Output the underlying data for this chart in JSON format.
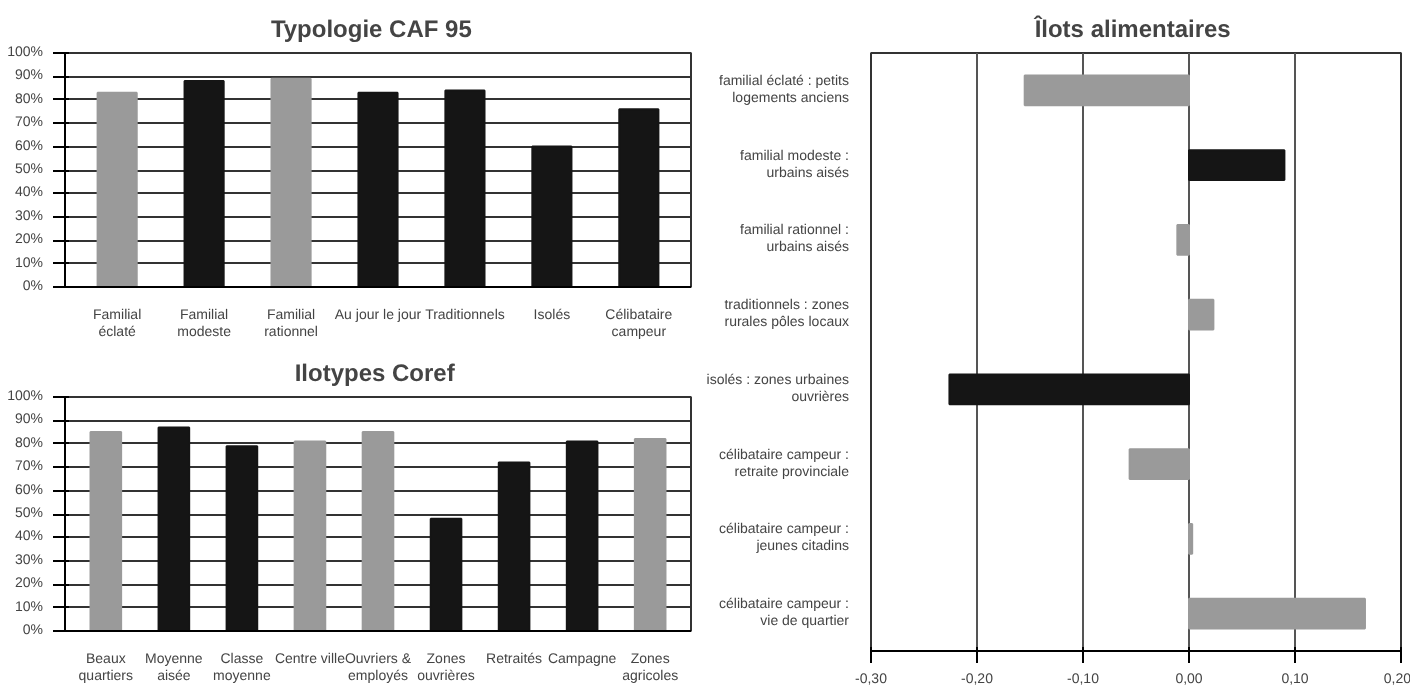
{
  "chart_data": [
    {
      "type": "bar",
      "title": "Typologie  CAF  95",
      "categories": [
        "Familial\néclaté",
        "Familial\nmodeste",
        "Familial\nrationnel",
        "Au jour le jour",
        "Traditionnels",
        "Isolés",
        "Célibataire\ncampeur"
      ],
      "values": [
        83,
        88,
        89,
        83,
        84,
        60,
        76
      ],
      "colors": [
        "#9a9a9a",
        "#151515",
        "#9a9a9a",
        "#151515",
        "#151515",
        "#151515",
        "#151515"
      ],
      "ylim": [
        0,
        100
      ],
      "yticks": [
        {
          "value": 0,
          "label": "0%"
        },
        {
          "value": 10,
          "label": "10%"
        },
        {
          "value": 20,
          "label": "20%"
        },
        {
          "value": 30,
          "label": "30%"
        },
        {
          "value": 40,
          "label": "40%"
        },
        {
          "value": 50,
          "label": "50%"
        },
        {
          "value": 60,
          "label": "60%"
        },
        {
          "value": 70,
          "label": "70%"
        },
        {
          "value": 80,
          "label": "80%"
        },
        {
          "value": 90,
          "label": "90%"
        },
        {
          "value": 100,
          "label": "100%"
        }
      ],
      "grid": "y"
    },
    {
      "type": "bar",
      "title": "Ilotypes  Coref",
      "categories": [
        "Beaux\nquartiers",
        "Moyenne\naisée",
        "Classe\nmoyenne",
        "Centre ville",
        "Ouvriers &\nemployés",
        "Zones\nouvrières",
        "Retraités",
        "Campagne",
        "Zones\nagricoles"
      ],
      "values": [
        85,
        87,
        79,
        81,
        85,
        48,
        72,
        81,
        82
      ],
      "colors": [
        "#9a9a9a",
        "#151515",
        "#151515",
        "#9a9a9a",
        "#9a9a9a",
        "#151515",
        "#151515",
        "#151515",
        "#9a9a9a"
      ],
      "ylim": [
        0,
        100
      ],
      "yticks": [
        {
          "value": 0,
          "label": "0%"
        },
        {
          "value": 10,
          "label": "10%"
        },
        {
          "value": 20,
          "label": "20%"
        },
        {
          "value": 30,
          "label": "30%"
        },
        {
          "value": 40,
          "label": "40%"
        },
        {
          "value": 50,
          "label": "50%"
        },
        {
          "value": 60,
          "label": "60%"
        },
        {
          "value": 70,
          "label": "70%"
        },
        {
          "value": 80,
          "label": "80%"
        },
        {
          "value": 90,
          "label": "90%"
        },
        {
          "value": 100,
          "label": "100%"
        }
      ],
      "grid": "y"
    },
    {
      "type": "bar",
      "orientation": "horizontal",
      "title": "Îlots  alimentaires",
      "categories": [
        "familial éclaté : petits\nlogements anciens",
        "familial modeste :\nurbains aisés",
        "familial rationnel :\nurbains aisés",
        "traditionnels : zones\nrurales pôles locaux",
        "isolés : zones urbaines\nouvrières",
        "célibataire campeur :\nretraite provinciale",
        "célibataire campeur :\njeunes citadins",
        "célibataire campeur :\nvie de quartier"
      ],
      "values": [
        -0.155,
        0.09,
        -0.011,
        0.023,
        -0.226,
        -0.056,
        0.003,
        0.166
      ],
      "colors": [
        "#9a9a9a",
        "#151515",
        "#9a9a9a",
        "#9a9a9a",
        "#151515",
        "#9a9a9a",
        "#9a9a9a",
        "#9a9a9a"
      ],
      "xlim": [
        -0.3,
        0.2
      ],
      "xticks": [
        {
          "value": -0.3,
          "label": "-0,30"
        },
        {
          "value": -0.2,
          "label": "-0,20"
        },
        {
          "value": -0.1,
          "label": "-0,10"
        },
        {
          "value": 0,
          "label": "0,00"
        },
        {
          "value": 0.1,
          "label": "0,10"
        },
        {
          "value": 0.2,
          "label": "0,20"
        }
      ],
      "grid": "x"
    }
  ]
}
